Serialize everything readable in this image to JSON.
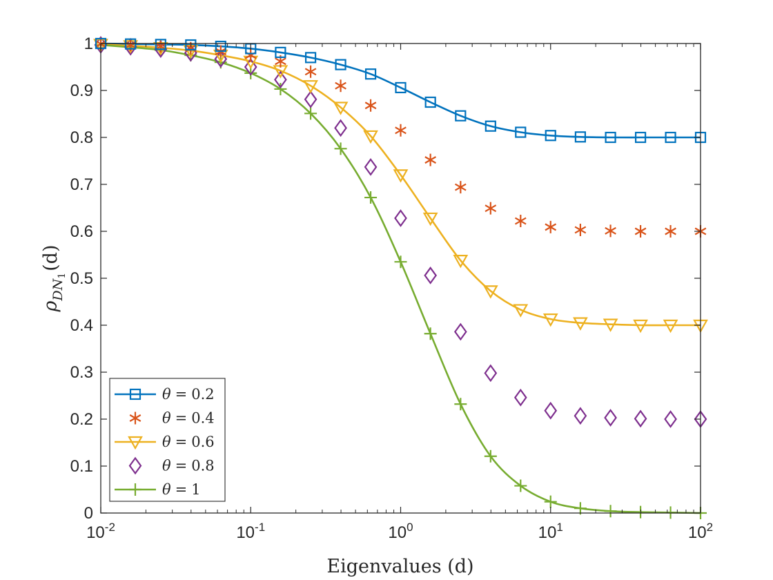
{
  "chart_data": {
    "type": "line",
    "xscale": "log",
    "xlim": [
      0.01,
      100
    ],
    "ylim": [
      0,
      1
    ],
    "xlabel": "Eigenvalues (d)",
    "ylabel": "ρDN1(d)",
    "ylabel_parts": {
      "base": "ρ",
      "sub": "DN",
      "subsub": "1",
      "arg": "(d)"
    },
    "xticks": [
      {
        "value": 0.01,
        "base": "10",
        "exp": "-2"
      },
      {
        "value": 0.1,
        "base": "10",
        "exp": "-1"
      },
      {
        "value": 1,
        "base": "10",
        "exp": "0"
      },
      {
        "value": 10,
        "base": "10",
        "exp": "1"
      },
      {
        "value": 100,
        "base": "10",
        "exp": "2"
      }
    ],
    "yticks": [
      {
        "value": 0,
        "label": "0"
      },
      {
        "value": 0.1,
        "label": "0.1"
      },
      {
        "value": 0.2,
        "label": "0.2"
      },
      {
        "value": 0.3,
        "label": "0.3"
      },
      {
        "value": 0.4,
        "label": "0.4"
      },
      {
        "value": 0.5,
        "label": "0.5"
      },
      {
        "value": 0.6,
        "label": "0.6"
      },
      {
        "value": 0.7,
        "label": "0.7"
      },
      {
        "value": 0.8,
        "label": "0.8"
      },
      {
        "value": 0.9,
        "label": "0.9"
      },
      {
        "value": 1,
        "label": "1"
      }
    ],
    "x": [
      0.01,
      0.0158,
      0.0251,
      0.0398,
      0.0631,
      0.1,
      0.158,
      0.251,
      0.398,
      0.631,
      1,
      1.58,
      2.51,
      3.98,
      6.31,
      10,
      15.8,
      25.1,
      39.8,
      63.1,
      100
    ],
    "series": [
      {
        "name": "θ = 0.2",
        "color": "#0072BD",
        "marker": "square",
        "line": true,
        "values": [
          1.0,
          0.999,
          0.998,
          0.997,
          0.994,
          0.989,
          0.981,
          0.97,
          0.955,
          0.935,
          0.906,
          0.875,
          0.846,
          0.824,
          0.811,
          0.804,
          0.801,
          0.8,
          0.8,
          0.8,
          0.8
        ]
      },
      {
        "name": "θ = 0.4",
        "color": "#D95319",
        "marker": "asterisk",
        "line": false,
        "values": [
          0.999,
          0.997,
          0.994,
          0.99,
          0.983,
          0.975,
          0.962,
          0.94,
          0.91,
          0.868,
          0.815,
          0.752,
          0.694,
          0.649,
          0.622,
          0.609,
          0.603,
          0.601,
          0.6,
          0.6,
          0.6
        ]
      },
      {
        "name": "θ = 0.6",
        "color": "#EDB120",
        "marker": "triangle-down",
        "line": true,
        "values": [
          0.998,
          0.995,
          0.991,
          0.985,
          0.975,
          0.962,
          0.942,
          0.91,
          0.864,
          0.803,
          0.72,
          0.628,
          0.538,
          0.473,
          0.433,
          0.413,
          0.405,
          0.402,
          0.4,
          0.4,
          0.4
        ]
      },
      {
        "name": "θ = 0.8",
        "color": "#7E2F8E",
        "marker": "diamond",
        "line": false,
        "values": [
          0.997,
          0.993,
          0.988,
          0.98,
          0.967,
          0.95,
          0.923,
          0.881,
          0.82,
          0.737,
          0.628,
          0.506,
          0.386,
          0.298,
          0.246,
          0.218,
          0.207,
          0.203,
          0.201,
          0.2,
          0.2
        ]
      },
      {
        "name": "θ = 1",
        "color": "#77AC30",
        "marker": "plus",
        "line": true,
        "values": [
          0.997,
          0.992,
          0.986,
          0.975,
          0.96,
          0.937,
          0.903,
          0.851,
          0.776,
          0.672,
          0.535,
          0.382,
          0.232,
          0.121,
          0.058,
          0.024,
          0.01,
          0.004,
          0.002,
          0.001,
          0.0
        ]
      }
    ],
    "legend": {
      "location": "bottom-left",
      "entries": [
        {
          "var": "θ",
          "eq": "=",
          "val": "0.2"
        },
        {
          "var": "θ",
          "eq": "=",
          "val": "0.4"
        },
        {
          "var": "θ",
          "eq": "=",
          "val": "0.6"
        },
        {
          "var": "θ",
          "eq": "=",
          "val": "0.8"
        },
        {
          "var": "θ",
          "eq": "=",
          "val": "1"
        }
      ]
    },
    "grid": false
  }
}
